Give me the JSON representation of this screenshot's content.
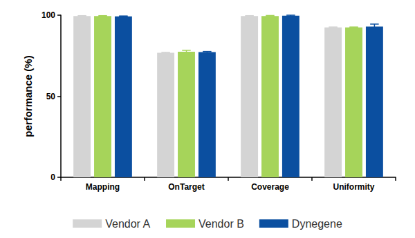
{
  "chart_data": {
    "type": "bar",
    "y_label": "performance (%)",
    "categories": [
      "Mapping",
      "OnTarget",
      "Coverage",
      "Uniformity"
    ],
    "series": [
      {
        "name": "Vendor A",
        "color": "#d4d4d4",
        "values": [
          99.5,
          76.8,
          99.5,
          92.5
        ],
        "errors": [
          0.2,
          0.3,
          0.2,
          0.2
        ]
      },
      {
        "name": "Vendor B",
        "color": "#a6d45a",
        "values": [
          99.5,
          77.5,
          99.5,
          92.5
        ],
        "errors": [
          0.2,
          0.8,
          0.3,
          0.2
        ]
      },
      {
        "name": "Dynegene",
        "color": "#0b4fa0",
        "values": [
          99.3,
          77.2,
          99.7,
          93.0
        ],
        "errors": [
          0.2,
          0.4,
          0.3,
          1.5
        ]
      }
    ],
    "ylim": [
      0,
      100
    ],
    "yticks": [
      0,
      50,
      100
    ],
    "grid": false,
    "legend": "bottom"
  }
}
